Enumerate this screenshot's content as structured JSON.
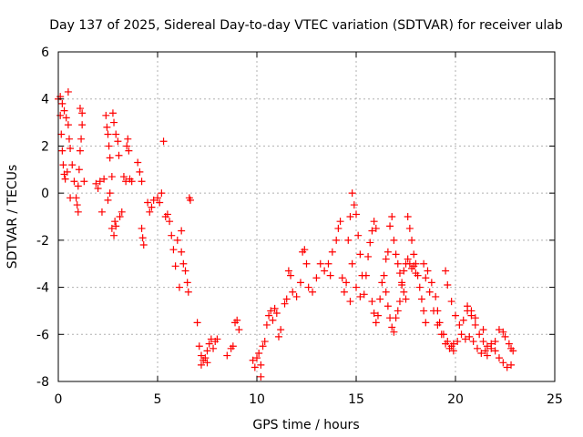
{
  "chart_data": {
    "type": "scatter",
    "title": "Day 137 of 2025, Sidereal Day-to-day VTEC variation (SDTVAR) for receiver ulab",
    "xlabel": "GPS time / hours",
    "ylabel": "SDTVAR / TECUs",
    "xlim": [
      0,
      25
    ],
    "ylim": [
      -8,
      6
    ],
    "xticks": [
      0,
      5,
      10,
      15,
      20,
      25
    ],
    "yticks": [
      -8,
      -6,
      -4,
      -2,
      0,
      2,
      4,
      6
    ],
    "grid": true,
    "marker": "+",
    "marker_color": "#ff0000",
    "series": [
      {
        "name": "SDTVAR",
        "points": [
          [
            0.0,
            4.0
          ],
          [
            0.1,
            3.3
          ],
          [
            0.15,
            2.5
          ],
          [
            0.2,
            1.8
          ],
          [
            0.25,
            1.2
          ],
          [
            0.3,
            0.8
          ],
          [
            0.35,
            0.6
          ],
          [
            0.1,
            4.1
          ],
          [
            0.2,
            3.8
          ],
          [
            0.3,
            3.5
          ],
          [
            0.4,
            3.2
          ],
          [
            0.5,
            2.9
          ],
          [
            0.55,
            2.3
          ],
          [
            0.6,
            1.9
          ],
          [
            0.45,
            0.9
          ],
          [
            0.5,
            4.3
          ],
          [
            0.6,
            -0.2
          ],
          [
            0.7,
            1.2
          ],
          [
            0.8,
            0.5
          ],
          [
            0.9,
            -0.2
          ],
          [
            0.95,
            -0.5
          ],
          [
            1.0,
            -0.8
          ],
          [
            1.0,
            0.3
          ],
          [
            1.05,
            1.0
          ],
          [
            1.1,
            1.8
          ],
          [
            1.15,
            2.3
          ],
          [
            1.2,
            2.9
          ],
          [
            1.1,
            3.6
          ],
          [
            1.2,
            3.4
          ],
          [
            1.3,
            0.5
          ],
          [
            1.9,
            0.4
          ],
          [
            2.0,
            0.2
          ],
          [
            2.1,
            0.5
          ],
          [
            2.2,
            -0.8
          ],
          [
            2.3,
            0.6
          ],
          [
            2.4,
            3.3
          ],
          [
            2.45,
            2.8
          ],
          [
            2.5,
            2.5
          ],
          [
            2.55,
            2.0
          ],
          [
            2.6,
            1.5
          ],
          [
            2.7,
            0.7
          ],
          [
            2.6,
            0.0
          ],
          [
            2.5,
            -0.3
          ],
          [
            2.7,
            -1.5
          ],
          [
            2.8,
            -1.8
          ],
          [
            2.85,
            -1.2
          ],
          [
            2.9,
            -1.4
          ],
          [
            2.75,
            3.4
          ],
          [
            2.8,
            3.0
          ],
          [
            2.9,
            2.5
          ],
          [
            3.0,
            2.2
          ],
          [
            3.05,
            1.6
          ],
          [
            3.1,
            -1.0
          ],
          [
            3.2,
            -0.8
          ],
          [
            3.3,
            0.7
          ],
          [
            3.4,
            0.5
          ],
          [
            3.5,
            2.3
          ],
          [
            3.45,
            2.0
          ],
          [
            3.55,
            1.8
          ],
          [
            3.6,
            0.6
          ],
          [
            3.7,
            0.5
          ],
          [
            4.0,
            1.3
          ],
          [
            4.1,
            0.9
          ],
          [
            4.2,
            -1.5
          ],
          [
            4.25,
            -1.9
          ],
          [
            4.3,
            -2.2
          ],
          [
            4.2,
            0.5
          ],
          [
            4.5,
            -0.4
          ],
          [
            4.6,
            -0.8
          ],
          [
            4.7,
            -0.6
          ],
          [
            4.8,
            -0.3
          ],
          [
            5.0,
            -0.2
          ],
          [
            5.1,
            -0.4
          ],
          [
            5.2,
            0.0
          ],
          [
            5.3,
            2.2
          ],
          [
            5.4,
            -1.0
          ],
          [
            5.5,
            -0.9
          ],
          [
            5.6,
            -1.2
          ],
          [
            5.7,
            -1.8
          ],
          [
            5.8,
            -2.4
          ],
          [
            5.9,
            -3.1
          ],
          [
            6.0,
            -2.0
          ],
          [
            6.2,
            -2.5
          ],
          [
            6.3,
            -3.0
          ],
          [
            6.4,
            -3.3
          ],
          [
            6.5,
            -3.8
          ],
          [
            6.55,
            -4.2
          ],
          [
            6.6,
            -0.2
          ],
          [
            6.65,
            -0.3
          ],
          [
            6.2,
            -1.6
          ],
          [
            6.1,
            -4.0
          ],
          [
            7.0,
            -5.5
          ],
          [
            7.1,
            -6.5
          ],
          [
            7.2,
            -6.9
          ],
          [
            7.3,
            -7.1
          ],
          [
            7.4,
            -7.0
          ],
          [
            7.5,
            -6.7
          ],
          [
            7.6,
            -6.4
          ],
          [
            7.7,
            -6.2
          ],
          [
            7.8,
            -6.6
          ],
          [
            7.9,
            -6.3
          ],
          [
            7.2,
            -7.3
          ],
          [
            7.5,
            -7.2
          ],
          [
            8.0,
            -6.2
          ],
          [
            8.7,
            -6.6
          ],
          [
            8.8,
            -6.5
          ],
          [
            8.9,
            -5.5
          ],
          [
            9.0,
            -5.4
          ],
          [
            9.1,
            -5.8
          ],
          [
            8.5,
            -6.9
          ],
          [
            9.8,
            -7.1
          ],
          [
            9.9,
            -7.4
          ],
          [
            10.0,
            -7.0
          ],
          [
            10.1,
            -6.8
          ],
          [
            10.2,
            -7.3
          ],
          [
            10.3,
            -6.5
          ],
          [
            10.4,
            -6.3
          ],
          [
            10.2,
            -7.8
          ],
          [
            10.5,
            -5.6
          ],
          [
            10.6,
            -5.2
          ],
          [
            10.7,
            -5.0
          ],
          [
            10.8,
            -5.4
          ],
          [
            10.9,
            -4.9
          ],
          [
            11.0,
            -5.1
          ],
          [
            11.1,
            -6.1
          ],
          [
            11.2,
            -5.8
          ],
          [
            11.4,
            -4.7
          ],
          [
            11.5,
            -4.5
          ],
          [
            11.6,
            -3.3
          ],
          [
            11.7,
            -3.5
          ],
          [
            11.8,
            -4.2
          ],
          [
            12.0,
            -4.4
          ],
          [
            12.2,
            -3.8
          ],
          [
            12.3,
            -2.5
          ],
          [
            12.4,
            -2.4
          ],
          [
            12.5,
            -3.0
          ],
          [
            12.6,
            -4.0
          ],
          [
            12.8,
            -4.2
          ],
          [
            13.0,
            -3.6
          ],
          [
            13.2,
            -3.0
          ],
          [
            13.4,
            -3.3
          ],
          [
            13.6,
            -3.0
          ],
          [
            13.7,
            -3.5
          ],
          [
            13.8,
            -2.5
          ],
          [
            14.0,
            -2.0
          ],
          [
            14.1,
            -1.5
          ],
          [
            14.2,
            -1.2
          ],
          [
            14.3,
            -3.6
          ],
          [
            14.4,
            -4.2
          ],
          [
            14.5,
            -3.8
          ],
          [
            14.6,
            -2.0
          ],
          [
            14.7,
            -1.0
          ],
          [
            14.8,
            0.0
          ],
          [
            14.9,
            -0.5
          ],
          [
            15.0,
            -0.9
          ],
          [
            15.1,
            -1.8
          ],
          [
            15.2,
            -2.6
          ],
          [
            15.3,
            -3.5
          ],
          [
            14.7,
            -4.6
          ],
          [
            14.8,
            -3.0
          ],
          [
            15.0,
            -4.0
          ],
          [
            15.2,
            -4.4
          ],
          [
            15.4,
            -4.3
          ],
          [
            15.5,
            -3.5
          ],
          [
            15.6,
            -2.7
          ],
          [
            15.7,
            -2.1
          ],
          [
            15.8,
            -1.6
          ],
          [
            15.9,
            -1.2
          ],
          [
            16.0,
            -1.5
          ],
          [
            15.8,
            -4.6
          ],
          [
            15.9,
            -5.1
          ],
          [
            16.0,
            -5.5
          ],
          [
            16.1,
            -5.2
          ],
          [
            16.2,
            -4.5
          ],
          [
            16.3,
            -3.8
          ],
          [
            16.4,
            -3.5
          ],
          [
            16.5,
            -4.2
          ],
          [
            16.6,
            -4.8
          ],
          [
            16.7,
            -5.3
          ],
          [
            16.8,
            -5.7
          ],
          [
            16.9,
            -5.9
          ],
          [
            16.5,
            -2.8
          ],
          [
            16.6,
            -2.5
          ],
          [
            16.7,
            -1.4
          ],
          [
            16.8,
            -1.0
          ],
          [
            16.9,
            -2.0
          ],
          [
            17.0,
            -2.6
          ],
          [
            17.1,
            -3.0
          ],
          [
            17.2,
            -3.4
          ],
          [
            17.3,
            -3.8
          ],
          [
            17.4,
            -4.2
          ],
          [
            17.5,
            -4.5
          ],
          [
            17.0,
            -5.3
          ],
          [
            17.1,
            -5.0
          ],
          [
            17.2,
            -4.6
          ],
          [
            17.3,
            -3.9
          ],
          [
            17.4,
            -3.3
          ],
          [
            17.5,
            -3.0
          ],
          [
            17.6,
            -2.8
          ],
          [
            17.7,
            -3.0
          ],
          [
            17.8,
            -3.2
          ],
          [
            17.9,
            -3.1
          ],
          [
            18.0,
            -3.4
          ],
          [
            17.6,
            -1.0
          ],
          [
            17.7,
            -1.5
          ],
          [
            17.8,
            -2.0
          ],
          [
            17.9,
            -2.6
          ],
          [
            18.0,
            -3.0
          ],
          [
            18.1,
            -3.5
          ],
          [
            18.2,
            -4.0
          ],
          [
            18.3,
            -4.5
          ],
          [
            18.4,
            -5.0
          ],
          [
            18.5,
            -5.5
          ],
          [
            18.4,
            -3.0
          ],
          [
            18.6,
            -3.3
          ],
          [
            18.8,
            -3.8
          ],
          [
            19.0,
            -4.4
          ],
          [
            19.1,
            -5.0
          ],
          [
            19.2,
            -5.5
          ],
          [
            19.4,
            -6.0
          ],
          [
            19.6,
            -6.3
          ],
          [
            19.8,
            -6.5
          ],
          [
            18.5,
            -3.6
          ],
          [
            18.7,
            -4.2
          ],
          [
            18.9,
            -5.0
          ],
          [
            19.1,
            -5.6
          ],
          [
            19.3,
            -6.0
          ],
          [
            19.5,
            -6.4
          ],
          [
            19.7,
            -6.6
          ],
          [
            19.9,
            -6.4
          ],
          [
            19.5,
            -3.3
          ],
          [
            19.6,
            -3.9
          ],
          [
            19.8,
            -4.6
          ],
          [
            20.0,
            -5.2
          ],
          [
            20.2,
            -5.6
          ],
          [
            20.4,
            -5.4
          ],
          [
            20.6,
            -5.0
          ],
          [
            20.8,
            -5.2
          ],
          [
            21.0,
            -5.6
          ],
          [
            21.2,
            -6.0
          ],
          [
            21.4,
            -6.3
          ],
          [
            21.6,
            -6.5
          ],
          [
            19.9,
            -6.7
          ],
          [
            20.1,
            -6.3
          ],
          [
            20.3,
            -6.0
          ],
          [
            20.5,
            -6.2
          ],
          [
            20.7,
            -6.1
          ],
          [
            20.9,
            -6.3
          ],
          [
            21.1,
            -6.6
          ],
          [
            21.3,
            -6.8
          ],
          [
            21.5,
            -6.7
          ],
          [
            20.6,
            -4.8
          ],
          [
            20.8,
            -5.0
          ],
          [
            21.0,
            -5.3
          ],
          [
            21.4,
            -5.8
          ],
          [
            21.8,
            -6.4
          ],
          [
            22.0,
            -6.7
          ],
          [
            22.2,
            -7.0
          ],
          [
            22.4,
            -7.2
          ],
          [
            22.6,
            -7.4
          ],
          [
            22.8,
            -7.3
          ],
          [
            21.6,
            -6.9
          ],
          [
            21.8,
            -6.6
          ],
          [
            22.0,
            -6.3
          ],
          [
            22.2,
            -5.8
          ],
          [
            22.4,
            -5.9
          ],
          [
            22.5,
            -6.1
          ],
          [
            22.7,
            -6.4
          ],
          [
            22.8,
            -6.6
          ],
          [
            22.9,
            -6.7
          ]
        ]
      }
    ]
  }
}
